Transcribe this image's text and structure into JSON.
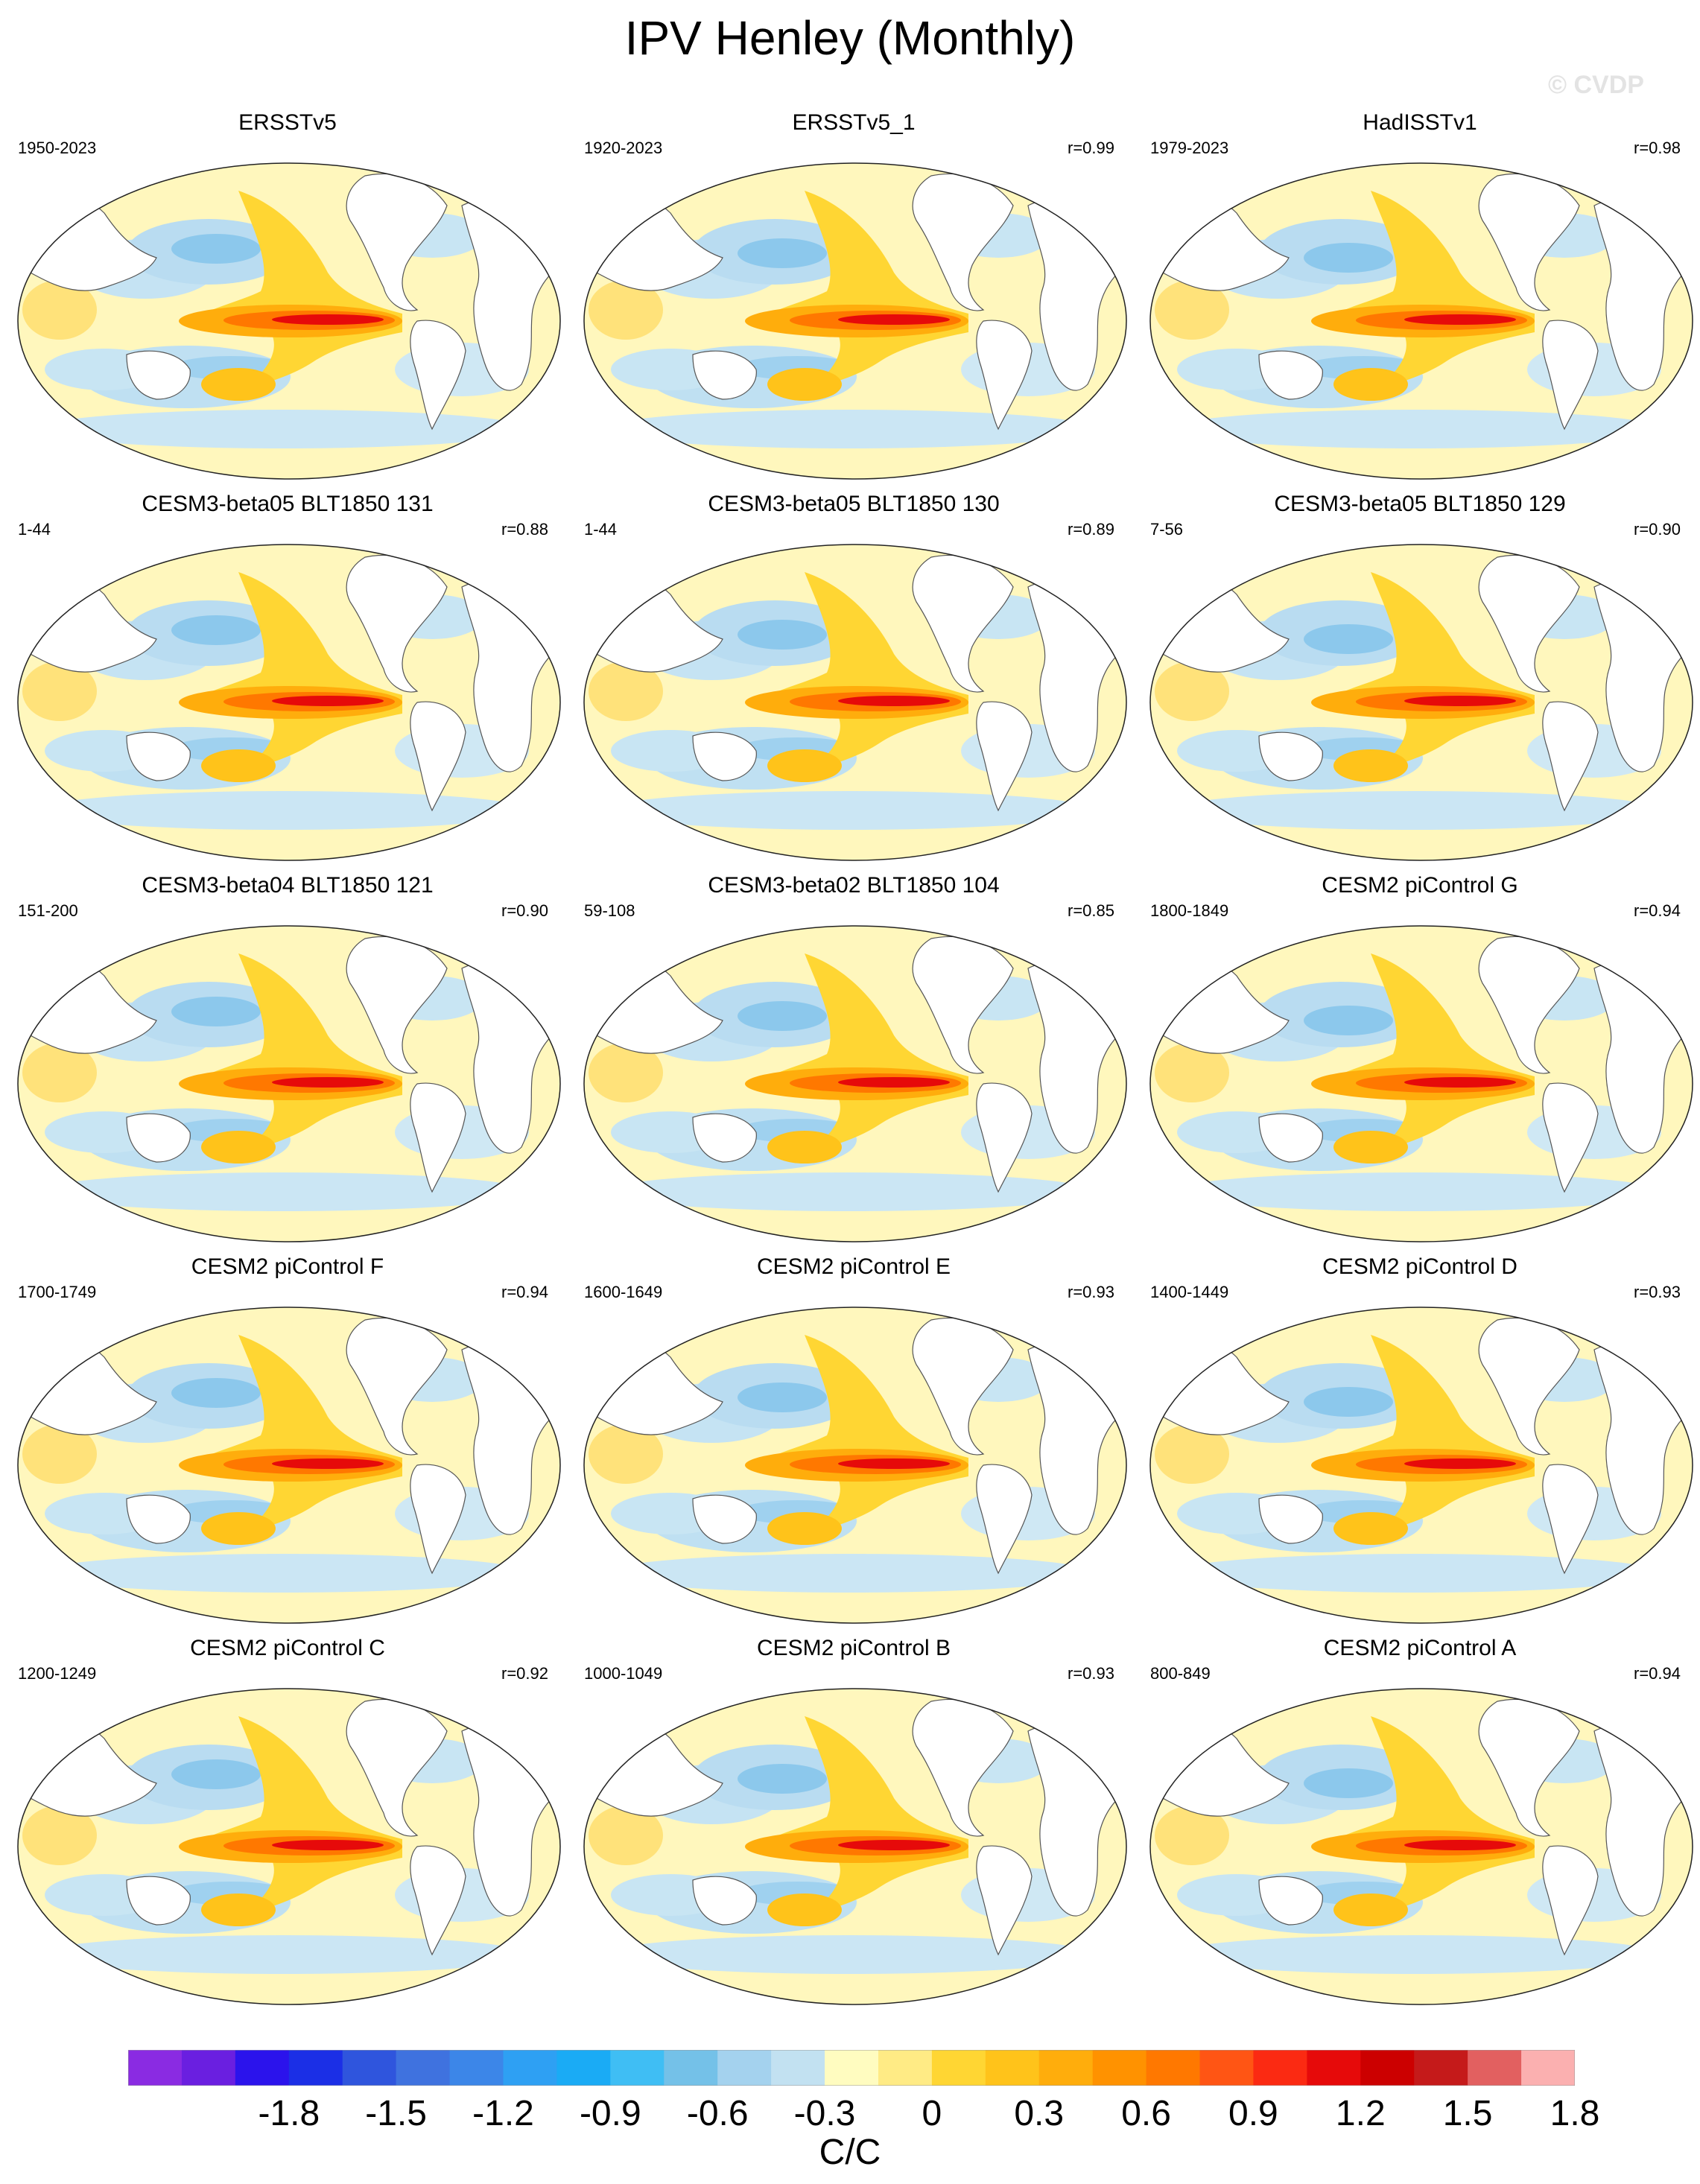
{
  "chart_data": {
    "type": "map-grid",
    "title": "IPV Henley (Monthly)",
    "watermark": "© CVDP",
    "colorbar": {
      "units": "C/C",
      "tick_labels": [
        "-1.8",
        "-1.5",
        "-1.2",
        "-0.9",
        "-0.6",
        "-0.3",
        "0",
        "0.3",
        "0.6",
        "0.9",
        "1.2",
        "1.5",
        "1.8"
      ],
      "colors": [
        "#8a2be2",
        "#6a1fe0",
        "#2b13ec",
        "#1b2fe6",
        "#2f55dd",
        "#3f72df",
        "#3c86e8",
        "#2ea0f3",
        "#1aabf5",
        "#3fbef4",
        "#74c1e8",
        "#a4d2ee",
        "#c2e1f1",
        "#fffcc0",
        "#ffeb85",
        "#ffd633",
        "#ffc31a",
        "#ffad0c",
        "#ff9200",
        "#ff7800",
        "#ff5514",
        "#fb2a12",
        "#e60a0a",
        "#cc0000",
        "#c51a1a",
        "#e26060",
        "#fbb0b0"
      ]
    },
    "panels": [
      {
        "title": "ERSSTv5",
        "period": "1950-2023",
        "r": ""
      },
      {
        "title": "ERSSTv5_1",
        "period": "1920-2023",
        "r": "r=0.99"
      },
      {
        "title": "HadISSTv1",
        "period": "1979-2023",
        "r": "r=0.98"
      },
      {
        "title": "CESM3-beta05 BLT1850 131",
        "period": "1-44",
        "r": "r=0.88"
      },
      {
        "title": "CESM3-beta05 BLT1850 130",
        "period": "1-44",
        "r": "r=0.89"
      },
      {
        "title": "CESM3-beta05 BLT1850 129",
        "period": "7-56",
        "r": "r=0.90"
      },
      {
        "title": "CESM3-beta04 BLT1850 121",
        "period": "151-200",
        "r": "r=0.90"
      },
      {
        "title": "CESM3-beta02 BLT1850 104",
        "period": "59-108",
        "r": "r=0.85"
      },
      {
        "title": "CESM2 piControl G",
        "period": "1800-1849",
        "r": "r=0.94"
      },
      {
        "title": "CESM2 piControl F",
        "period": "1700-1749",
        "r": "r=0.94"
      },
      {
        "title": "CESM2 piControl E",
        "period": "1600-1649",
        "r": "r=0.93"
      },
      {
        "title": "CESM2 piControl D",
        "period": "1400-1449",
        "r": "r=0.93"
      },
      {
        "title": "CESM2 piControl C",
        "period": "1200-1249",
        "r": "r=0.92"
      },
      {
        "title": "CESM2 piControl B",
        "period": "1000-1049",
        "r": "r=0.93"
      },
      {
        "title": "CESM2 piControl A",
        "period": "800-849",
        "r": "r=0.94"
      }
    ]
  }
}
